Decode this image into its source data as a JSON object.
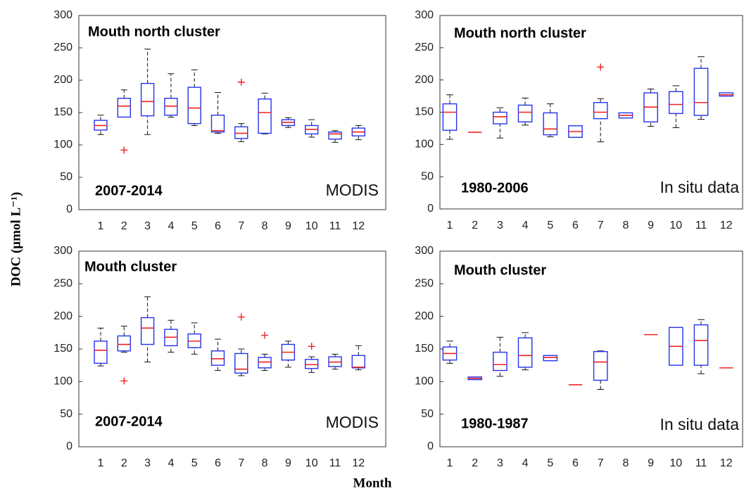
{
  "ylabel": "DOC (µmol L⁻¹)",
  "xlabel": "Month",
  "chart_data": [
    {
      "type": "box",
      "title": "Mouth north cluster",
      "period": "2007-2014",
      "source": "MODIS",
      "categories": [
        "1",
        "2",
        "3",
        "4",
        "5",
        "6",
        "7",
        "8",
        "9",
        "10",
        "11",
        "12"
      ],
      "ylim": [
        0,
        300
      ],
      "yticks": [
        0,
        50,
        100,
        150,
        200,
        250,
        300
      ],
      "boxes": [
        {
          "low": 116,
          "q1": 123,
          "median": 130,
          "q3": 138,
          "high": 146,
          "outliers": []
        },
        {
          "low": 143,
          "q1": 143,
          "median": 160,
          "q3": 172,
          "high": 185,
          "outliers": [
            92
          ]
        },
        {
          "low": 116,
          "q1": 145,
          "median": 167,
          "q3": 195,
          "high": 248,
          "outliers": []
        },
        {
          "low": 143,
          "q1": 146,
          "median": 160,
          "q3": 172,
          "high": 210,
          "outliers": []
        },
        {
          "low": 130,
          "q1": 133,
          "median": 157,
          "q3": 189,
          "high": 216,
          "outliers": []
        },
        {
          "low": 118,
          "q1": 120,
          "median": 122,
          "q3": 146,
          "high": 181,
          "outliers": []
        },
        {
          "low": 105,
          "q1": 110,
          "median": 118,
          "q3": 128,
          "high": 133,
          "outliers": [
            197
          ]
        },
        {
          "low": 117,
          "q1": 118,
          "median": 150,
          "q3": 171,
          "high": 180,
          "outliers": []
        },
        {
          "low": 127,
          "q1": 130,
          "median": 135,
          "q3": 139,
          "high": 142,
          "outliers": []
        },
        {
          "low": 112,
          "q1": 117,
          "median": 124,
          "q3": 130,
          "high": 139,
          "outliers": []
        },
        {
          "low": 104,
          "q1": 109,
          "median": 117,
          "q3": 120,
          "high": 122,
          "outliers": []
        },
        {
          "low": 108,
          "q1": 114,
          "median": 120,
          "q3": 126,
          "high": 130,
          "outliers": []
        }
      ]
    },
    {
      "type": "box",
      "title": "Mouth north cluster",
      "period": "1980-2006",
      "source": "In situ data",
      "categories": [
        "1",
        "2",
        "3",
        "4",
        "5",
        "6",
        "7",
        "8",
        "9",
        "10",
        "11",
        "12"
      ],
      "ylim": [
        0,
        300
      ],
      "yticks": [
        0,
        50,
        100,
        150,
        200,
        250,
        300
      ],
      "boxes": [
        {
          "low": 108,
          "q1": 122,
          "median": 150,
          "q3": 163,
          "high": 177,
          "outliers": []
        },
        {
          "low": null,
          "q1": null,
          "median": 119,
          "q3": null,
          "high": null,
          "outliers": []
        },
        {
          "low": 110,
          "q1": 132,
          "median": 143,
          "q3": 150,
          "high": 157,
          "outliers": []
        },
        {
          "low": 130,
          "q1": 135,
          "median": 150,
          "q3": 161,
          "high": 172,
          "outliers": []
        },
        {
          "low": 112,
          "q1": 115,
          "median": 124,
          "q3": 149,
          "high": 163,
          "outliers": []
        },
        {
          "low": null,
          "q1": 111,
          "median": 120,
          "q3": 129,
          "high": null,
          "outliers": []
        },
        {
          "low": 104,
          "q1": 140,
          "median": 150,
          "q3": 165,
          "high": 171,
          "outliers": [
            220
          ]
        },
        {
          "low": null,
          "q1": 141,
          "median": 145,
          "q3": 149,
          "high": null,
          "outliers": []
        },
        {
          "low": 128,
          "q1": 135,
          "median": 158,
          "q3": 180,
          "high": 186,
          "outliers": []
        },
        {
          "low": 126,
          "q1": 148,
          "median": 162,
          "q3": 182,
          "high": 191,
          "outliers": []
        },
        {
          "low": 139,
          "q1": 145,
          "median": 165,
          "q3": 218,
          "high": 236,
          "outliers": []
        },
        {
          "low": null,
          "q1": 175,
          "median": 177,
          "q3": 180,
          "high": null,
          "outliers": []
        }
      ]
    },
    {
      "type": "box",
      "title": "Mouth cluster",
      "period": "2007-2014",
      "source": "MODIS",
      "categories": [
        "1",
        "2",
        "3",
        "4",
        "5",
        "6",
        "7",
        "8",
        "9",
        "10",
        "11",
        "12"
      ],
      "ylim": [
        0,
        300
      ],
      "yticks": [
        0,
        50,
        100,
        150,
        200,
        250,
        300
      ],
      "boxes": [
        {
          "low": 124,
          "q1": 128,
          "median": 148,
          "q3": 162,
          "high": 182,
          "outliers": []
        },
        {
          "low": 145,
          "q1": 147,
          "median": 157,
          "q3": 170,
          "high": 185,
          "outliers": [
            101
          ]
        },
        {
          "low": 130,
          "q1": 157,
          "median": 182,
          "q3": 198,
          "high": 230,
          "outliers": []
        },
        {
          "low": 145,
          "q1": 155,
          "median": 168,
          "q3": 180,
          "high": 194,
          "outliers": []
        },
        {
          "low": 142,
          "q1": 152,
          "median": 162,
          "q3": 173,
          "high": 190,
          "outliers": []
        },
        {
          "low": 117,
          "q1": 125,
          "median": 135,
          "q3": 147,
          "high": 165,
          "outliers": []
        },
        {
          "low": 109,
          "q1": 113,
          "median": 119,
          "q3": 143,
          "high": 150,
          "outliers": [
            199
          ]
        },
        {
          "low": 117,
          "q1": 121,
          "median": 130,
          "q3": 137,
          "high": 142,
          "outliers": [
            171
          ]
        },
        {
          "low": 122,
          "q1": 133,
          "median": 145,
          "q3": 157,
          "high": 162,
          "outliers": []
        },
        {
          "low": 114,
          "q1": 120,
          "median": 126,
          "q3": 134,
          "high": 138,
          "outliers": [
            154
          ]
        },
        {
          "low": 119,
          "q1": 123,
          "median": 130,
          "q3": 138,
          "high": 142,
          "outliers": []
        },
        {
          "low": 118,
          "q1": 121,
          "median": 122,
          "q3": 140,
          "high": 155,
          "outliers": []
        }
      ]
    },
    {
      "type": "box",
      "title": "Mouth cluster",
      "period": "1980-1987",
      "source": "In situ data",
      "categories": [
        "1",
        "2",
        "3",
        "4",
        "5",
        "6",
        "7",
        "8",
        "9",
        "10",
        "11",
        "12"
      ],
      "ylim": [
        0,
        300
      ],
      "yticks": [
        0,
        50,
        100,
        150,
        200,
        250,
        300
      ],
      "boxes": [
        {
          "low": 128,
          "q1": 133,
          "median": 143,
          "q3": 153,
          "high": 162,
          "outliers": []
        },
        {
          "low": null,
          "q1": 103,
          "median": 105,
          "q3": 107,
          "high": null,
          "outliers": []
        },
        {
          "low": 108,
          "q1": 117,
          "median": 126,
          "q3": 145,
          "high": 168,
          "outliers": []
        },
        {
          "low": 118,
          "q1": 122,
          "median": 140,
          "q3": 167,
          "high": 175,
          "outliers": []
        },
        {
          "low": null,
          "q1": 132,
          "median": 137,
          "q3": 140,
          "high": null,
          "outliers": []
        },
        {
          "low": null,
          "q1": null,
          "median": 95,
          "q3": null,
          "high": null,
          "outliers": []
        },
        {
          "low": 88,
          "q1": 102,
          "median": 130,
          "q3": 146,
          "high": 147,
          "outliers": []
        },
        null,
        {
          "low": null,
          "q1": null,
          "median": 172,
          "q3": null,
          "high": null,
          "outliers": []
        },
        {
          "low": null,
          "q1": 125,
          "median": 154,
          "q3": 183,
          "high": null,
          "outliers": []
        },
        {
          "low": 112,
          "q1": 125,
          "median": 163,
          "q3": 187,
          "high": 195,
          "outliers": []
        },
        {
          "low": null,
          "q1": null,
          "median": 121,
          "q3": null,
          "high": null,
          "outliers": []
        }
      ]
    }
  ]
}
